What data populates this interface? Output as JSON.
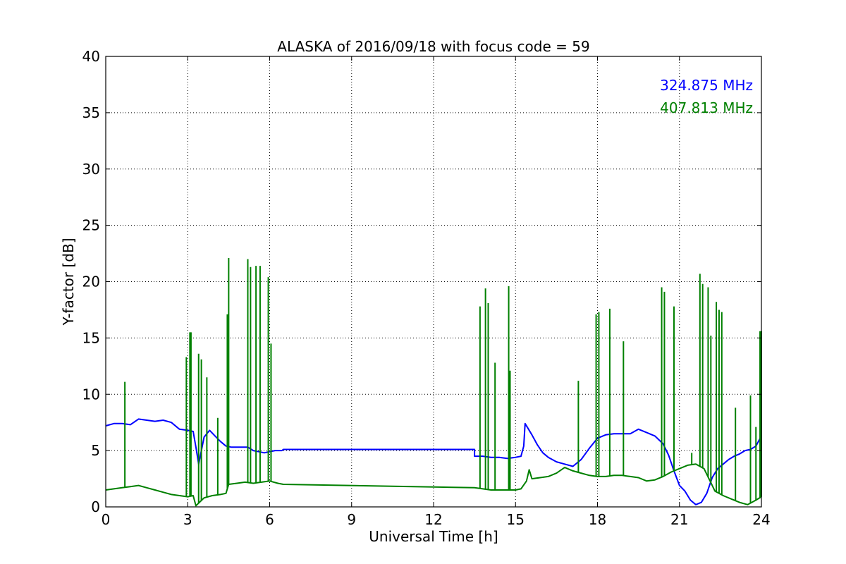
{
  "chart_data": {
    "type": "line",
    "title": "ALASKA of 2016/09/18 with focus code = 59",
    "xlabel": "Universal Time [h]",
    "ylabel": "Y-factor [dB]",
    "xlim": [
      0,
      24
    ],
    "ylim": [
      0,
      40
    ],
    "xticks": [
      0,
      3,
      6,
      9,
      12,
      15,
      18,
      21,
      24
    ],
    "yticks": [
      0,
      5,
      10,
      15,
      20,
      25,
      30,
      35,
      40
    ],
    "grid": true,
    "legend_position": "top-right",
    "series": [
      {
        "name": "324.875 MHz",
        "color": "#0000ff",
        "x": [
          0,
          0.3,
          0.6,
          0.9,
          1.2,
          1.5,
          1.8,
          2.1,
          2.4,
          2.7,
          3.0,
          3.2,
          3.3,
          3.4,
          3.6,
          3.8,
          4.0,
          4.2,
          4.4,
          4.6,
          4.8,
          5.0,
          5.2,
          5.4,
          5.6,
          5.8,
          6.0,
          6.2,
          6.45,
          6.5,
          13.5,
          13.5,
          13.8,
          14.1,
          14.4,
          14.7,
          15.0,
          15.2,
          15.3,
          15.35,
          15.45,
          15.6,
          15.8,
          16.0,
          16.2,
          16.5,
          16.8,
          17.1,
          17.4,
          17.7,
          18.0,
          18.3,
          18.6,
          18.9,
          19.2,
          19.5,
          19.8,
          20.1,
          20.4,
          20.6,
          20.8,
          21.0,
          21.2,
          21.4,
          21.6,
          21.8,
          22.0,
          22.2,
          22.4,
          22.6,
          22.8,
          23.0,
          23.2,
          23.4,
          23.6,
          23.8,
          24.0
        ],
        "y": [
          7.2,
          7.4,
          7.4,
          7.3,
          7.8,
          7.7,
          7.6,
          7.7,
          7.5,
          6.9,
          6.8,
          6.7,
          5.3,
          3.8,
          6.2,
          6.8,
          6.3,
          5.8,
          5.4,
          5.3,
          5.3,
          5.3,
          5.3,
          5.0,
          4.9,
          4.8,
          4.9,
          5.0,
          5.0,
          5.1,
          5.1,
          4.5,
          4.5,
          4.4,
          4.4,
          4.3,
          4.4,
          4.5,
          5.4,
          7.4,
          7.0,
          6.4,
          5.5,
          4.8,
          4.4,
          4.0,
          3.8,
          3.6,
          4.2,
          5.2,
          6.1,
          6.4,
          6.5,
          6.5,
          6.5,
          6.9,
          6.6,
          6.3,
          5.6,
          4.6,
          3.2,
          1.9,
          1.4,
          0.6,
          0.2,
          0.4,
          1.2,
          2.6,
          3.4,
          3.8,
          4.2,
          4.5,
          4.7,
          5.0,
          5.1,
          5.4,
          6.3
        ]
      },
      {
        "name": "407.813 MHz",
        "color": "#008000",
        "x": [
          0,
          0.3,
          0.6,
          0.9,
          1.2,
          1.5,
          1.8,
          2.1,
          2.4,
          2.7,
          3.0,
          3.2,
          3.3,
          3.6,
          3.9,
          4.2,
          4.4,
          4.5,
          4.8,
          5.1,
          5.4,
          5.7,
          6.0,
          6.3,
          6.5,
          13.5,
          13.8,
          14.1,
          14.4,
          14.7,
          15.0,
          15.2,
          15.4,
          15.5,
          15.6,
          15.9,
          16.2,
          16.5,
          16.8,
          17.1,
          17.4,
          17.7,
          18.0,
          18.3,
          18.6,
          18.9,
          19.2,
          19.5,
          19.8,
          20.1,
          20.4,
          20.7,
          21.0,
          21.3,
          21.6,
          21.9,
          22.1,
          22.3,
          22.6,
          22.9,
          23.2,
          23.5,
          23.8,
          24.0
        ],
        "y": [
          1.5,
          1.6,
          1.7,
          1.8,
          1.9,
          1.7,
          1.5,
          1.3,
          1.1,
          1.0,
          0.9,
          1.0,
          0.1,
          0.8,
          1.0,
          1.1,
          1.2,
          2.0,
          2.1,
          2.2,
          2.1,
          2.2,
          2.3,
          2.1,
          2.0,
          1.7,
          1.6,
          1.5,
          1.5,
          1.5,
          1.5,
          1.6,
          2.3,
          3.3,
          2.5,
          2.6,
          2.7,
          3.0,
          3.5,
          3.2,
          3.0,
          2.8,
          2.7,
          2.7,
          2.8,
          2.8,
          2.7,
          2.6,
          2.3,
          2.4,
          2.7,
          3.1,
          3.4,
          3.7,
          3.8,
          3.4,
          2.4,
          1.4,
          1.0,
          0.7,
          0.4,
          0.2,
          0.6,
          0.9
        ]
      }
    ],
    "spikes": {
      "series": "407.813 MHz",
      "x": [
        0.7,
        2.95,
        3.08,
        3.12,
        3.4,
        3.5,
        3.7,
        4.1,
        4.45,
        4.5,
        5.2,
        5.3,
        5.5,
        5.65,
        5.95,
        6.05,
        13.7,
        13.9,
        14.0,
        14.25,
        14.75,
        14.8,
        17.3,
        17.95,
        18.05,
        18.45,
        18.95,
        20.35,
        20.45,
        20.8,
        21.45,
        21.75,
        21.85,
        22.05,
        22.15,
        22.35,
        22.45,
        22.55,
        23.05,
        23.6,
        23.8,
        23.95,
        24.0
      ],
      "y": [
        11.1,
        13.3,
        15.5,
        15.5,
        13.6,
        13.1,
        11.5,
        7.9,
        17.1,
        22.1,
        22.0,
        21.3,
        21.4,
        21.4,
        20.4,
        14.5,
        17.8,
        19.4,
        18.1,
        12.8,
        19.6,
        12.1,
        11.2,
        17.1,
        17.3,
        17.6,
        14.7,
        19.5,
        19.1,
        17.8,
        4.8,
        20.7,
        19.8,
        19.5,
        15.2,
        18.2,
        17.5,
        17.3,
        8.8,
        9.9,
        7.1,
        15.6,
        15.6
      ]
    },
    "legend": [
      {
        "label": "324.875 MHz",
        "color": "#0000ff"
      },
      {
        "label": "407.813 MHz",
        "color": "#008000"
      }
    ]
  }
}
